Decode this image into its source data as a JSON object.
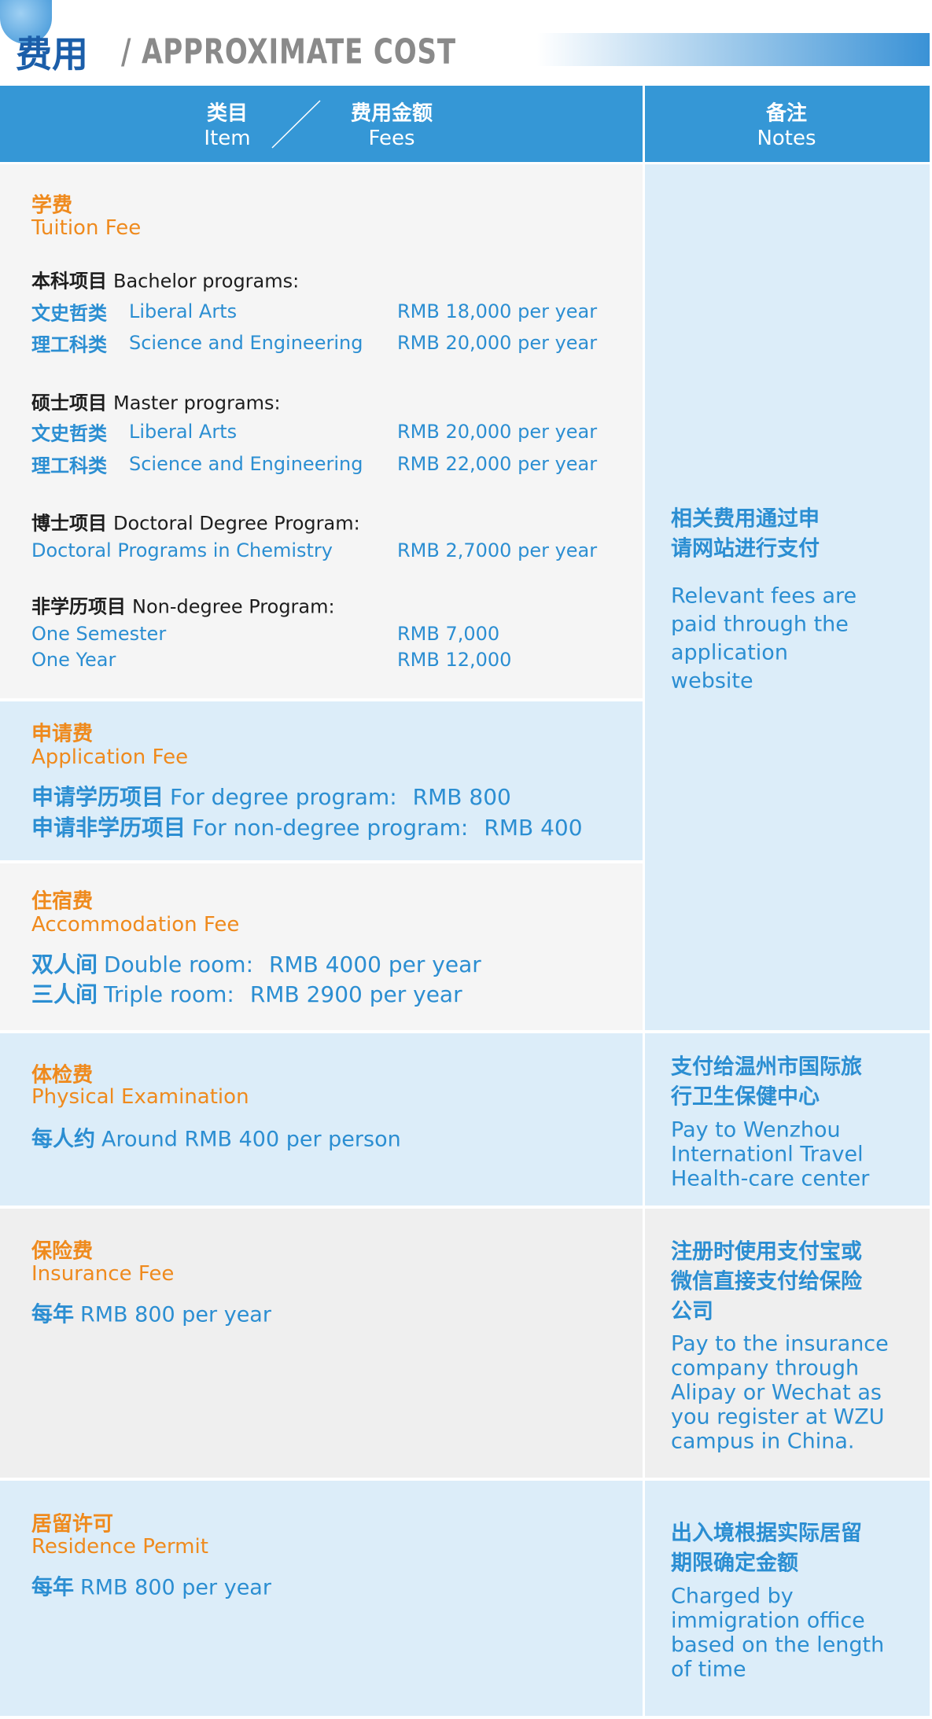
{
  "header": {
    "title_cn": "费用",
    "title_en": "/ APPROXIMATE COST"
  },
  "table": {
    "columns": {
      "item": {
        "cn": "类目",
        "en": "Item"
      },
      "fees": {
        "cn": "费用金额",
        "en": "Fees"
      },
      "notes": {
        "cn": "备注",
        "en": "Notes"
      }
    },
    "rows": [
      {
        "title_cn": "学费",
        "title_en": "Tuition Fee",
        "groups": [
          {
            "cn": "本科项目",
            "en": "Bachelor programs:",
            "items": [
              {
                "cn": "文史哲类",
                "en": "Liberal Arts",
                "fee": "RMB 18,000 per year"
              },
              {
                "cn": "理工科类",
                "en": "Science and Engineering",
                "fee": "RMB 20,000 per year"
              }
            ]
          },
          {
            "cn": "硕士项目",
            "en": "Master programs:",
            "items": [
              {
                "cn": "文史哲类",
                "en": "Liberal Arts",
                "fee": "RMB 20,000 per year"
              },
              {
                "cn": "理工科类",
                "en": "Science and Engineering",
                "fee": "RMB 22,000 per year"
              }
            ]
          },
          {
            "cn": "博士项目",
            "en": "Doctoral Degree Program:",
            "items": [
              {
                "en": "Doctoral Programs in Chemistry",
                "fee": "RMB 2,7000 per year"
              }
            ]
          },
          {
            "cn": "非学历项目",
            "en": "Non-degree Program:",
            "items": [
              {
                "en": "One Semester",
                "fee": "RMB 7,000"
              },
              {
                "en": "One Year",
                "fee": "RMB 12,000"
              }
            ]
          }
        ]
      },
      {
        "title_cn": "申请费",
        "title_en": "Application Fee",
        "lines": [
          {
            "cn": "申请学历项目",
            "en": "For degree program:",
            "fee": "RMB 800"
          },
          {
            "cn": "申请非学历项目",
            "en": "For non-degree program:",
            "fee": "RMB 400"
          }
        ]
      },
      {
        "title_cn": "住宿费",
        "title_en": "Accommodation Fee",
        "lines": [
          {
            "cn": "双人间",
            "en": "Double room:",
            "fee": "RMB 4000 per year"
          },
          {
            "cn": "三人间",
            "en": "Triple room:",
            "fee": "RMB 2900 per year"
          }
        ]
      },
      {
        "title_cn": "体检费",
        "title_en": "Physical Examination",
        "lines": [
          {
            "cn": "每人约",
            "en": "Around RMB 400 per person"
          }
        ]
      },
      {
        "title_cn": "保险费",
        "title_en": "Insurance Fee",
        "lines": [
          {
            "cn": "每年",
            "en": "RMB 800 per year"
          }
        ]
      },
      {
        "title_cn": "居留许可",
        "title_en": "Residence Permit",
        "lines": [
          {
            "cn": "每年",
            "en": "RMB 800 per year"
          }
        ]
      }
    ],
    "notes": [
      {
        "cn": [
          "相关费用通过申",
          "请网站进行支付"
        ],
        "en": [
          "Relevant fees are",
          "paid through the",
          "application",
          "website"
        ]
      },
      {
        "cn": [
          "支付给温州市国际旅",
          "行卫生保健中心"
        ],
        "en": [
          "Pay to Wenzhou",
          "Internationl Travel",
          "Health-care center"
        ]
      },
      {
        "cn": [
          "注册时使用支付宝或",
          "微信直接支付给保险",
          "公司"
        ],
        "en": [
          "Pay to the insurance",
          "company through",
          "Alipay or Wechat as",
          "you register at WZU",
          "campus in China."
        ]
      },
      {
        "cn": [
          "出入境根据实际居留",
          "期限确定金额"
        ],
        "en": [
          "Charged by",
          "immigration office",
          "based on the length",
          "of time"
        ]
      }
    ]
  }
}
